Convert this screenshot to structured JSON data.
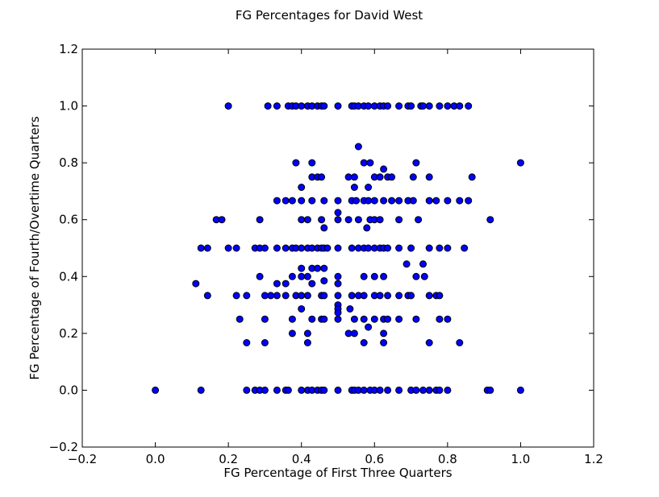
{
  "chart_data": {
    "type": "scatter",
    "title": "FG Percentages for David West",
    "xlabel": "FG Percentage of First Three Quarters",
    "ylabel": "FG Percentage of Fourth/Overtime Quarters",
    "xlim": [
      -0.2,
      1.2
    ],
    "ylim": [
      -0.2,
      1.2
    ],
    "xticks": [
      -0.2,
      0.0,
      0.2,
      0.4,
      0.6,
      0.8,
      1.0,
      1.2
    ],
    "yticks": [
      -0.2,
      0.0,
      0.2,
      0.4,
      0.6,
      0.8,
      1.0,
      1.2
    ],
    "xtick_labels": [
      "−0.2",
      "0.0",
      "0.2",
      "0.4",
      "0.6",
      "0.8",
      "1.0",
      "1.2"
    ],
    "ytick_labels": [
      "−0.2",
      "0.0",
      "0.2",
      "0.4",
      "0.6",
      "0.8",
      "1.0",
      "1.2"
    ],
    "grid": false,
    "marker_color": "#0000ff",
    "marker_edge_color": "#000000",
    "points": [
      [
        0.2,
        1.0
      ],
      [
        0.308,
        1.0
      ],
      [
        0.333,
        1.0
      ],
      [
        0.364,
        1.0
      ],
      [
        0.375,
        1.0
      ],
      [
        0.385,
        1.0
      ],
      [
        0.4,
        1.0
      ],
      [
        0.417,
        1.0
      ],
      [
        0.429,
        1.0
      ],
      [
        0.444,
        1.0
      ],
      [
        0.455,
        1.0
      ],
      [
        0.462,
        1.0
      ],
      [
        0.5,
        1.0
      ],
      [
        0.538,
        1.0
      ],
      [
        0.545,
        1.0
      ],
      [
        0.556,
        1.0
      ],
      [
        0.571,
        1.0
      ],
      [
        0.583,
        1.0
      ],
      [
        0.6,
        1.0
      ],
      [
        0.615,
        1.0
      ],
      [
        0.625,
        1.0
      ],
      [
        0.636,
        1.0
      ],
      [
        0.667,
        1.0
      ],
      [
        0.692,
        1.0
      ],
      [
        0.7,
        1.0
      ],
      [
        0.727,
        1.0
      ],
      [
        0.733,
        1.0
      ],
      [
        0.75,
        1.0
      ],
      [
        0.778,
        1.0
      ],
      [
        0.8,
        1.0
      ],
      [
        0.818,
        1.0
      ],
      [
        0.833,
        1.0
      ],
      [
        0.857,
        1.0
      ],
      [
        0.556,
        0.857
      ],
      [
        0.385,
        0.8
      ],
      [
        0.429,
        0.8
      ],
      [
        0.571,
        0.8
      ],
      [
        0.625,
        0.778
      ],
      [
        0.714,
        0.8
      ],
      [
        1.0,
        0.8
      ],
      [
        0.588,
        0.8
      ],
      [
        0.4,
        0.714
      ],
      [
        0.583,
        0.714
      ],
      [
        0.429,
        0.75
      ],
      [
        0.444,
        0.75
      ],
      [
        0.455,
        0.75
      ],
      [
        0.529,
        0.75
      ],
      [
        0.545,
        0.75
      ],
      [
        0.6,
        0.75
      ],
      [
        0.615,
        0.75
      ],
      [
        0.636,
        0.75
      ],
      [
        0.647,
        0.75
      ],
      [
        0.706,
        0.75
      ],
      [
        0.75,
        0.75
      ],
      [
        0.867,
        0.75
      ],
      [
        0.545,
        0.714
      ],
      [
        0.333,
        0.667
      ],
      [
        0.357,
        0.667
      ],
      [
        0.375,
        0.667
      ],
      [
        0.4,
        0.667
      ],
      [
        0.429,
        0.667
      ],
      [
        0.462,
        0.667
      ],
      [
        0.5,
        0.667
      ],
      [
        0.538,
        0.667
      ],
      [
        0.55,
        0.667
      ],
      [
        0.571,
        0.667
      ],
      [
        0.583,
        0.667
      ],
      [
        0.6,
        0.667
      ],
      [
        0.625,
        0.667
      ],
      [
        0.647,
        0.667
      ],
      [
        0.667,
        0.667
      ],
      [
        0.692,
        0.667
      ],
      [
        0.706,
        0.667
      ],
      [
        0.75,
        0.667
      ],
      [
        0.769,
        0.667
      ],
      [
        0.8,
        0.667
      ],
      [
        0.833,
        0.667
      ],
      [
        0.857,
        0.667
      ],
      [
        0.167,
        0.6
      ],
      [
        0.182,
        0.6
      ],
      [
        0.286,
        0.6
      ],
      [
        0.4,
        0.6
      ],
      [
        0.417,
        0.6
      ],
      [
        0.455,
        0.6
      ],
      [
        0.5,
        0.6
      ],
      [
        0.529,
        0.6
      ],
      [
        0.556,
        0.6
      ],
      [
        0.588,
        0.6
      ],
      [
        0.6,
        0.6
      ],
      [
        0.615,
        0.6
      ],
      [
        0.667,
        0.6
      ],
      [
        0.72,
        0.6
      ],
      [
        0.917,
        0.6
      ],
      [
        0.462,
        0.571
      ],
      [
        0.5,
        0.625
      ],
      [
        0.579,
        0.571
      ],
      [
        0.125,
        0.5
      ],
      [
        0.143,
        0.5
      ],
      [
        0.2,
        0.5
      ],
      [
        0.222,
        0.5
      ],
      [
        0.273,
        0.5
      ],
      [
        0.286,
        0.5
      ],
      [
        0.3,
        0.5
      ],
      [
        0.333,
        0.5
      ],
      [
        0.357,
        0.5
      ],
      [
        0.375,
        0.5
      ],
      [
        0.385,
        0.5
      ],
      [
        0.4,
        0.5
      ],
      [
        0.417,
        0.5
      ],
      [
        0.429,
        0.5
      ],
      [
        0.444,
        0.5
      ],
      [
        0.455,
        0.5
      ],
      [
        0.462,
        0.5
      ],
      [
        0.471,
        0.5
      ],
      [
        0.5,
        0.5
      ],
      [
        0.538,
        0.5
      ],
      [
        0.556,
        0.5
      ],
      [
        0.571,
        0.5
      ],
      [
        0.583,
        0.5
      ],
      [
        0.6,
        0.5
      ],
      [
        0.615,
        0.5
      ],
      [
        0.625,
        0.5
      ],
      [
        0.636,
        0.5
      ],
      [
        0.667,
        0.5
      ],
      [
        0.7,
        0.5
      ],
      [
        0.75,
        0.5
      ],
      [
        0.778,
        0.5
      ],
      [
        0.8,
        0.5
      ],
      [
        0.846,
        0.5
      ],
      [
        0.688,
        0.444
      ],
      [
        0.733,
        0.444
      ],
      [
        0.4,
        0.429
      ],
      [
        0.429,
        0.429
      ],
      [
        0.444,
        0.429
      ],
      [
        0.462,
        0.429
      ],
      [
        0.286,
        0.4
      ],
      [
        0.375,
        0.4
      ],
      [
        0.4,
        0.4
      ],
      [
        0.417,
        0.4
      ],
      [
        0.5,
        0.4
      ],
      [
        0.571,
        0.4
      ],
      [
        0.6,
        0.4
      ],
      [
        0.625,
        0.4
      ],
      [
        0.714,
        0.4
      ],
      [
        0.737,
        0.4
      ],
      [
        0.111,
        0.375
      ],
      [
        0.333,
        0.375
      ],
      [
        0.357,
        0.375
      ],
      [
        0.429,
        0.375
      ],
      [
        0.5,
        0.375
      ],
      [
        0.462,
        0.385
      ],
      [
        0.143,
        0.333
      ],
      [
        0.25,
        0.333
      ],
      [
        0.3,
        0.333
      ],
      [
        0.316,
        0.333
      ],
      [
        0.333,
        0.333
      ],
      [
        0.357,
        0.333
      ],
      [
        0.385,
        0.333
      ],
      [
        0.4,
        0.333
      ],
      [
        0.417,
        0.333
      ],
      [
        0.455,
        0.333
      ],
      [
        0.462,
        0.333
      ],
      [
        0.5,
        0.333
      ],
      [
        0.538,
        0.333
      ],
      [
        0.556,
        0.333
      ],
      [
        0.571,
        0.333
      ],
      [
        0.6,
        0.333
      ],
      [
        0.615,
        0.333
      ],
      [
        0.636,
        0.333
      ],
      [
        0.667,
        0.333
      ],
      [
        0.692,
        0.333
      ],
      [
        0.7,
        0.333
      ],
      [
        0.75,
        0.333
      ],
      [
        0.769,
        0.333
      ],
      [
        0.778,
        0.333
      ],
      [
        0.222,
        0.333
      ],
      [
        0.5,
        0.3
      ],
      [
        0.4,
        0.286
      ],
      [
        0.5,
        0.286
      ],
      [
        0.533,
        0.286
      ],
      [
        0.5,
        0.273
      ],
      [
        0.231,
        0.25
      ],
      [
        0.3,
        0.25
      ],
      [
        0.375,
        0.25
      ],
      [
        0.429,
        0.25
      ],
      [
        0.455,
        0.25
      ],
      [
        0.462,
        0.25
      ],
      [
        0.5,
        0.25
      ],
      [
        0.545,
        0.25
      ],
      [
        0.571,
        0.25
      ],
      [
        0.6,
        0.25
      ],
      [
        0.625,
        0.25
      ],
      [
        0.636,
        0.25
      ],
      [
        0.667,
        0.25
      ],
      [
        0.714,
        0.25
      ],
      [
        0.778,
        0.25
      ],
      [
        0.8,
        0.25
      ],
      [
        0.583,
        0.222
      ],
      [
        0.375,
        0.2
      ],
      [
        0.417,
        0.2
      ],
      [
        0.529,
        0.2
      ],
      [
        0.545,
        0.2
      ],
      [
        0.625,
        0.2
      ],
      [
        0.25,
        0.167
      ],
      [
        0.3,
        0.167
      ],
      [
        0.417,
        0.167
      ],
      [
        0.571,
        0.167
      ],
      [
        0.625,
        0.167
      ],
      [
        0.75,
        0.167
      ],
      [
        0.833,
        0.167
      ],
      [
        0.0,
        0.0
      ],
      [
        0.125,
        0.0
      ],
      [
        0.25,
        0.0
      ],
      [
        0.273,
        0.0
      ],
      [
        0.286,
        0.0
      ],
      [
        0.3,
        0.0
      ],
      [
        0.333,
        0.0
      ],
      [
        0.357,
        0.0
      ],
      [
        0.364,
        0.0
      ],
      [
        0.4,
        0.0
      ],
      [
        0.417,
        0.0
      ],
      [
        0.429,
        0.0
      ],
      [
        0.444,
        0.0
      ],
      [
        0.455,
        0.0
      ],
      [
        0.462,
        0.0
      ],
      [
        0.5,
        0.0
      ],
      [
        0.538,
        0.0
      ],
      [
        0.545,
        0.0
      ],
      [
        0.556,
        0.0
      ],
      [
        0.571,
        0.0
      ],
      [
        0.588,
        0.0
      ],
      [
        0.6,
        0.0
      ],
      [
        0.615,
        0.0
      ],
      [
        0.636,
        0.0
      ],
      [
        0.667,
        0.0
      ],
      [
        0.7,
        0.0
      ],
      [
        0.714,
        0.0
      ],
      [
        0.733,
        0.0
      ],
      [
        0.75,
        0.0
      ],
      [
        0.769,
        0.0
      ],
      [
        0.778,
        0.0
      ],
      [
        0.8,
        0.0
      ],
      [
        0.909,
        0.0
      ],
      [
        0.917,
        0.0
      ],
      [
        1.0,
        0.0
      ]
    ]
  }
}
